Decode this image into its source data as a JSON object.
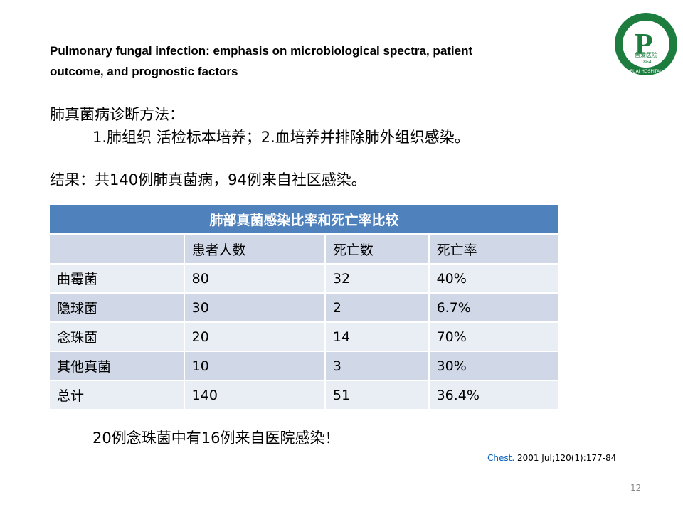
{
  "slide": {
    "title_lines": [
      "Pulmonary fungal infection: emphasis on microbiological spectra, patient",
      "outcome, and prognostic factors"
    ],
    "logo": {
      "name": "普爱医院",
      "english": "PUAI HOSPITAL",
      "year": "1864"
    },
    "method_heading": "肺真菌病诊断方法：",
    "method_text": "1.肺组织 活检标本培养；2.血培养并排除肺外组织感染。",
    "result_text": "结果：共140例肺真菌病，94例来自社区感染。",
    "table": {
      "caption": "肺部真菌感染比率和死亡率比较",
      "header": [
        "",
        "患者人数",
        "死亡数",
        "死亡率"
      ],
      "rows": [
        [
          "曲霉菌",
          "80",
          "32",
          "40%"
        ],
        [
          "隐球菌",
          "30",
          "2",
          "6.7%"
        ],
        [
          "念珠菌",
          "20",
          "14",
          "70%"
        ],
        [
          "其他真菌",
          "10",
          "3",
          "30%"
        ],
        [
          "总计",
          "140",
          "51",
          "36.4%"
        ]
      ]
    },
    "note": "20例念珠菌中有16例来自医院感染！",
    "reference": {
      "link": "Chest.",
      "text": " 2001 Jul;120(1):177-84"
    },
    "page_number": "12"
  }
}
